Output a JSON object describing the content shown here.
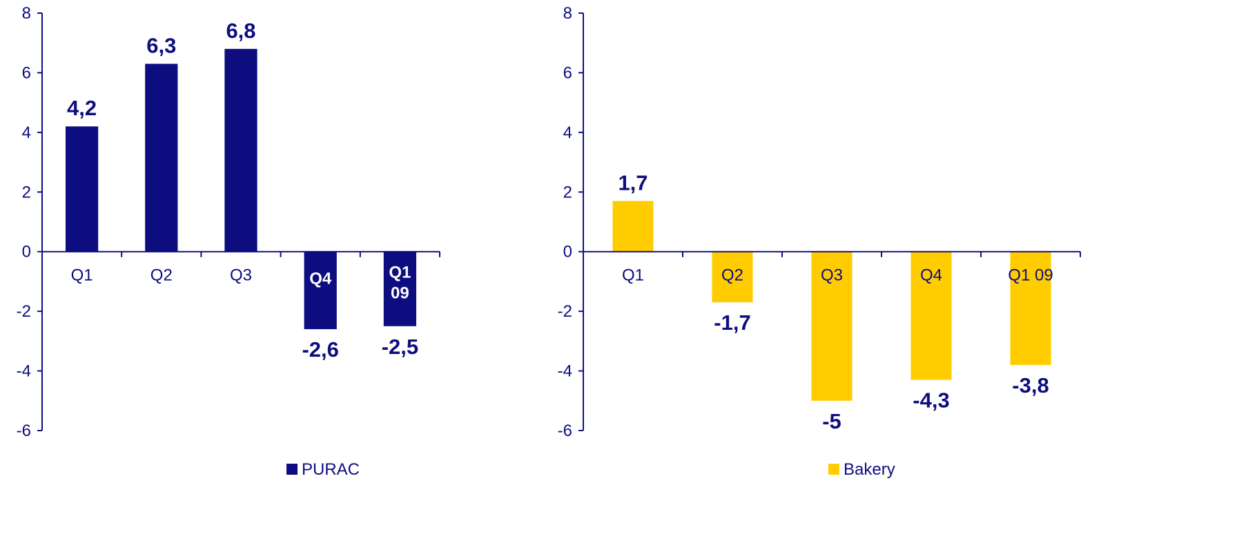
{
  "chart_data": [
    {
      "type": "bar",
      "categories": [
        "Q1",
        "Q2",
        "Q3",
        "Q4",
        "Q1 09"
      ],
      "series": [
        {
          "name": "PURAC",
          "values": [
            4.2,
            6.3,
            6.8,
            -2.6,
            -2.5
          ],
          "color": "#0d0d80",
          "value_labels": [
            "4,2",
            "6,3",
            "6,8",
            "-2,6",
            "-2,5"
          ]
        }
      ],
      "y_ticks": [
        "8",
        "6",
        "4",
        "2",
        "0",
        "-2",
        "-4",
        "-6"
      ],
      "ylim": [
        -6,
        8
      ],
      "grid": false,
      "legend": "bottom"
    },
    {
      "type": "bar",
      "categories": [
        "Q1",
        "Q2",
        "Q3",
        "Q4",
        "Q1 09"
      ],
      "series": [
        {
          "name": "Bakery",
          "values": [
            1.7,
            -1.7,
            -5,
            -4.3,
            -3.8
          ],
          "color": "#ffcc00",
          "value_labels": [
            "1,7",
            "-1,7",
            "-5",
            "-4,3",
            "-3,8"
          ]
        }
      ],
      "y_ticks": [
        "8",
        "6",
        "4",
        "2",
        "0",
        "-2",
        "-4",
        "-6"
      ],
      "ylim": [
        -6,
        8
      ],
      "grid": false,
      "legend": "bottom"
    }
  ]
}
